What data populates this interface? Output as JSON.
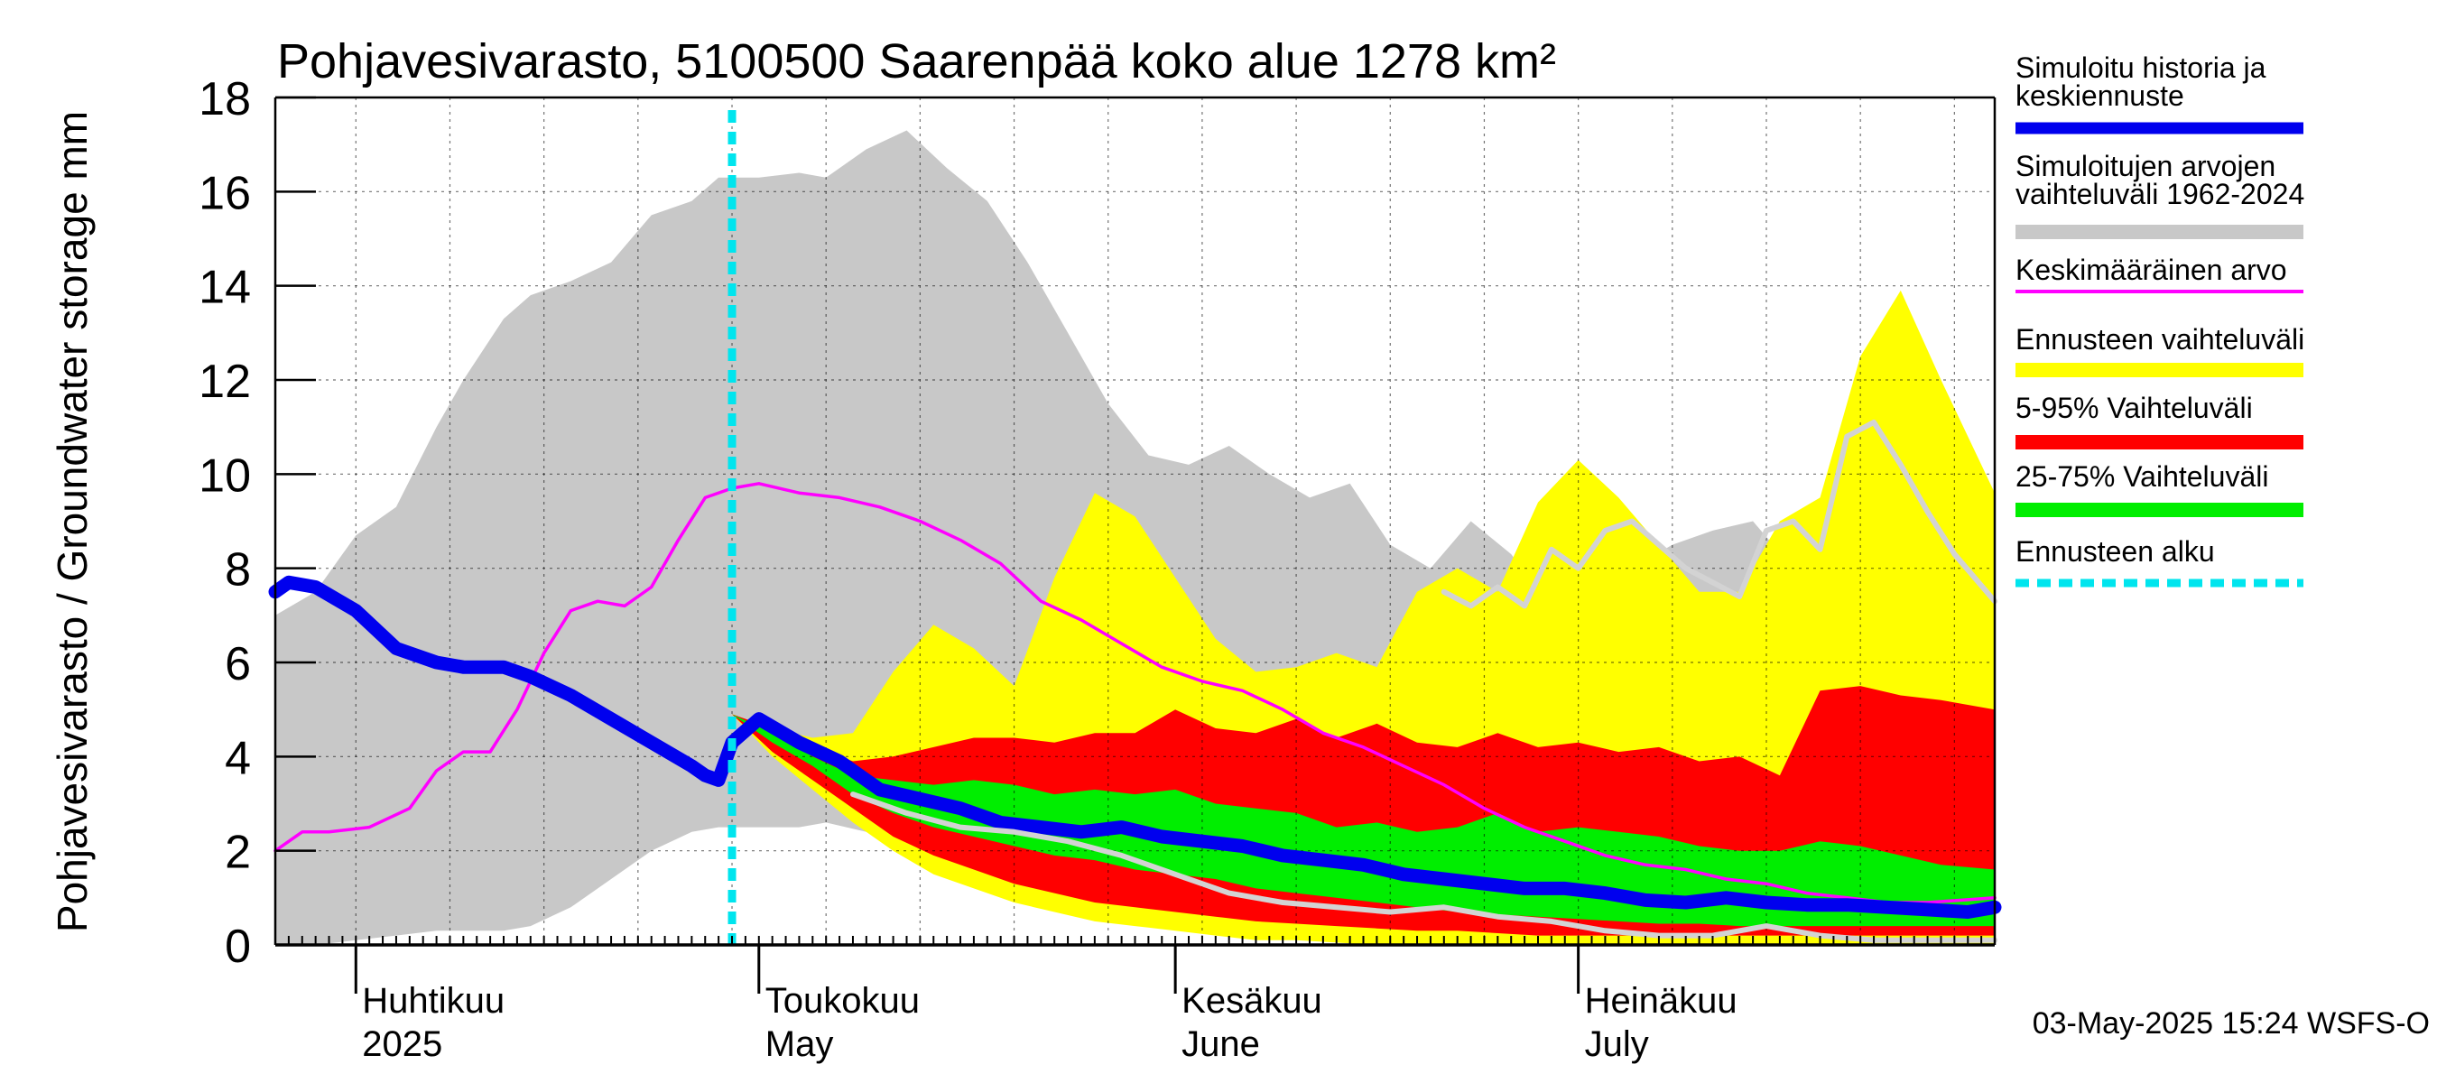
{
  "chart_data": {
    "type": "area",
    "title": "Pohjavesivarasto, 5100500 Saarenpää koko alue 1278 km²",
    "ylabel": "Pohjavesivarasto / Groundwater storage   mm",
    "ylim": [
      0,
      18
    ],
    "yticks": [
      "0",
      "2",
      "4",
      "6",
      "8",
      "10",
      "12",
      "14",
      "16",
      "18"
    ],
    "xlim": [
      "2025-03-26",
      "2025-08-01"
    ],
    "grid": true,
    "months": [
      {
        "date": "2025-04-01",
        "line1": "Huhtikuu",
        "line2": "2025"
      },
      {
        "date": "2025-05-01",
        "line1": "Toukokuu",
        "line2": "May"
      },
      {
        "date": "2025-06-01",
        "line1": "Kesäkuu",
        "line2": "June"
      },
      {
        "date": "2025-07-01",
        "line1": "Heinäkuu",
        "line2": "July"
      }
    ],
    "forecast_start": "2025-04-29",
    "timestamp": "03-May-2025 15:24 WSFS-O",
    "legend": [
      {
        "label": "Simuloitu historia ja keskiennuste",
        "color": "#0000ee",
        "style": "thick"
      },
      {
        "label": "Simuloitujen arvojen vaihteluväli 1962-2024",
        "color": "#c8c8c8",
        "style": "band"
      },
      {
        "label": "Keskimääräinen arvo",
        "color": "#ff00ff",
        "style": "thin"
      },
      {
        "label": "Ennusteen vaihteluväli",
        "color": "#ffff00",
        "style": "band"
      },
      {
        "label": "5-95% Vaihteluväli",
        "color": "#ff0000",
        "style": "band"
      },
      {
        "label": "25-75% Vaihteluväli",
        "color": "#00ee00",
        "style": "band"
      },
      {
        "label": "Ennusteen alku",
        "color": "#00e5ee",
        "style": "dashed"
      }
    ],
    "hist_range": {
      "name": "Simuloitujen arvojen vaihteluväli 1962-2024",
      "dates": [
        "2025-03-26",
        "2025-03-29",
        "2025-04-01",
        "2025-04-04",
        "2025-04-07",
        "2025-04-09",
        "2025-04-12",
        "2025-04-14",
        "2025-04-17",
        "2025-04-20",
        "2025-04-23",
        "2025-04-26",
        "2025-04-28",
        "2025-05-01",
        "2025-05-04",
        "2025-05-06",
        "2025-05-09",
        "2025-05-12",
        "2025-05-15",
        "2025-05-18",
        "2025-05-21",
        "2025-05-24",
        "2025-05-27",
        "2025-05-30",
        "2025-06-02",
        "2025-06-05",
        "2025-06-08",
        "2025-06-11",
        "2025-06-14",
        "2025-06-17",
        "2025-06-20",
        "2025-06-23",
        "2025-06-26",
        "2025-06-29",
        "2025-07-02",
        "2025-07-05",
        "2025-07-08",
        "2025-07-11",
        "2025-07-14",
        "2025-07-17",
        "2025-07-20",
        "2025-07-23",
        "2025-07-26",
        "2025-07-29",
        "2025-08-01"
      ],
      "upper": [
        7.0,
        7.5,
        8.7,
        9.3,
        11.0,
        12.0,
        13.3,
        13.8,
        14.1,
        14.5,
        15.5,
        15.8,
        16.3,
        16.3,
        16.4,
        16.3,
        16.9,
        17.3,
        16.5,
        15.8,
        14.5,
        13.0,
        11.5,
        10.4,
        10.2,
        10.6,
        10.0,
        9.5,
        9.8,
        8.5,
        8.0,
        9.0,
        8.3,
        7.2,
        7.5,
        8.0,
        8.5,
        8.8,
        9.0,
        8.0,
        7.5,
        7.5,
        7.3,
        7.0,
        7.0
      ],
      "lower": [
        0.0,
        0.0,
        0.1,
        0.2,
        0.3,
        0.3,
        0.3,
        0.4,
        0.8,
        1.4,
        2.0,
        2.4,
        2.5,
        2.5,
        2.5,
        2.6,
        2.4,
        2.3,
        2.2,
        2.0,
        1.8,
        1.6,
        1.3,
        1.2,
        1.1,
        1.0,
        0.9,
        0.8,
        0.7,
        0.7,
        0.6,
        0.5,
        0.4,
        0.3,
        0.2,
        0.2,
        0.1,
        0.0,
        0.0,
        0.0,
        0.0,
        0.0,
        0.0,
        0.0,
        0.0
      ]
    },
    "forecast_bands": [
      {
        "name": "Ennusteen vaihteluväli",
        "dates": [
          "2025-04-29",
          "2025-05-02",
          "2025-05-05",
          "2025-05-08",
          "2025-05-11",
          "2025-05-14",
          "2025-05-17",
          "2025-05-20",
          "2025-05-23",
          "2025-05-26",
          "2025-05-29",
          "2025-06-01",
          "2025-06-04",
          "2025-06-07",
          "2025-06-10",
          "2025-06-13",
          "2025-06-16",
          "2025-06-19",
          "2025-06-22",
          "2025-06-25",
          "2025-06-28",
          "2025-07-01",
          "2025-07-04",
          "2025-07-07",
          "2025-07-10",
          "2025-07-13",
          "2025-07-16",
          "2025-07-19",
          "2025-07-22",
          "2025-07-25",
          "2025-07-28",
          "2025-08-01"
        ],
        "upper": [
          4.9,
          4.6,
          4.4,
          4.5,
          5.8,
          6.8,
          6.3,
          5.5,
          7.8,
          9.6,
          9.1,
          7.8,
          6.5,
          5.8,
          5.9,
          6.2,
          5.9,
          7.5,
          8.0,
          7.5,
          9.4,
          10.3,
          9.5,
          8.5,
          7.5,
          7.5,
          9.0,
          9.5,
          12.5,
          13.9,
          12.0,
          9.6
        ],
        "lower": [
          4.9,
          4.0,
          3.3,
          2.6,
          2.0,
          1.5,
          1.2,
          0.9,
          0.7,
          0.5,
          0.4,
          0.3,
          0.2,
          0.1,
          0.1,
          0.05,
          0.0,
          0.0,
          0.0,
          0.0,
          0.0,
          0.0,
          0.0,
          0.0,
          0.0,
          0.0,
          0.0,
          0.0,
          0.0,
          0.0,
          0.0,
          0.0
        ]
      },
      {
        "name": "5-95% Vaihteluväli",
        "dates": [
          "2025-04-29",
          "2025-05-02",
          "2025-05-05",
          "2025-05-08",
          "2025-05-11",
          "2025-05-14",
          "2025-05-17",
          "2025-05-20",
          "2025-05-23",
          "2025-05-26",
          "2025-05-29",
          "2025-06-01",
          "2025-06-04",
          "2025-06-07",
          "2025-06-10",
          "2025-06-13",
          "2025-06-16",
          "2025-06-19",
          "2025-06-22",
          "2025-06-25",
          "2025-06-28",
          "2025-07-01",
          "2025-07-04",
          "2025-07-07",
          "2025-07-10",
          "2025-07-13",
          "2025-07-16",
          "2025-07-19",
          "2025-07-22",
          "2025-07-25",
          "2025-07-28",
          "2025-08-01"
        ],
        "upper": [
          4.9,
          4.6,
          4.2,
          3.9,
          4.0,
          4.2,
          4.4,
          4.4,
          4.3,
          4.5,
          4.5,
          5.0,
          4.6,
          4.5,
          4.8,
          4.4,
          4.7,
          4.3,
          4.2,
          4.5,
          4.2,
          4.3,
          4.1,
          4.2,
          3.9,
          4.0,
          3.6,
          5.4,
          5.5,
          5.3,
          5.2,
          5.0
        ],
        "lower": [
          4.9,
          4.1,
          3.5,
          2.9,
          2.3,
          1.9,
          1.6,
          1.3,
          1.1,
          0.9,
          0.8,
          0.7,
          0.6,
          0.5,
          0.45,
          0.4,
          0.35,
          0.3,
          0.3,
          0.25,
          0.2,
          0.2,
          0.2,
          0.2,
          0.2,
          0.2,
          0.2,
          0.2,
          0.2,
          0.2,
          0.2,
          0.2
        ]
      },
      {
        "name": "25-75% Vaihteluväli",
        "dates": [
          "2025-04-29",
          "2025-05-02",
          "2025-05-05",
          "2025-05-08",
          "2025-05-11",
          "2025-05-14",
          "2025-05-17",
          "2025-05-20",
          "2025-05-23",
          "2025-05-26",
          "2025-05-29",
          "2025-06-01",
          "2025-06-04",
          "2025-06-07",
          "2025-06-10",
          "2025-06-13",
          "2025-06-16",
          "2025-06-19",
          "2025-06-22",
          "2025-06-25",
          "2025-06-28",
          "2025-07-01",
          "2025-07-04",
          "2025-07-07",
          "2025-07-10",
          "2025-07-13",
          "2025-07-16",
          "2025-07-19",
          "2025-07-22",
          "2025-07-25",
          "2025-07-28",
          "2025-08-01"
        ],
        "upper": [
          4.9,
          4.5,
          4.0,
          3.6,
          3.5,
          3.4,
          3.5,
          3.4,
          3.2,
          3.3,
          3.2,
          3.3,
          3.0,
          2.9,
          2.8,
          2.5,
          2.6,
          2.4,
          2.5,
          2.8,
          2.4,
          2.5,
          2.4,
          2.3,
          2.1,
          2.0,
          2.0,
          2.2,
          2.1,
          1.9,
          1.7,
          1.6
        ],
        "lower": [
          4.9,
          4.3,
          3.8,
          3.2,
          2.8,
          2.5,
          2.3,
          2.1,
          1.9,
          1.8,
          1.6,
          1.5,
          1.4,
          1.2,
          1.1,
          1.0,
          0.9,
          0.8,
          0.7,
          0.65,
          0.6,
          0.55,
          0.5,
          0.45,
          0.45,
          0.4,
          0.4,
          0.4,
          0.4,
          0.4,
          0.4,
          0.4
        ]
      }
    ],
    "series": [
      {
        "name": "Keskimääräinen arvo",
        "color": "#ff00ff",
        "dates": [
          "2025-03-26",
          "2025-03-28",
          "2025-03-30",
          "2025-04-02",
          "2025-04-05",
          "2025-04-07",
          "2025-04-09",
          "2025-04-11",
          "2025-04-13",
          "2025-04-15",
          "2025-04-17",
          "2025-04-19",
          "2025-04-21",
          "2025-04-23",
          "2025-04-25",
          "2025-04-27",
          "2025-04-29",
          "2025-05-01",
          "2025-05-04",
          "2025-05-07",
          "2025-05-10",
          "2025-05-13",
          "2025-05-16",
          "2025-05-19",
          "2025-05-22",
          "2025-05-25",
          "2025-05-28",
          "2025-05-31",
          "2025-06-03",
          "2025-06-06",
          "2025-06-09",
          "2025-06-12",
          "2025-06-15",
          "2025-06-18",
          "2025-06-21",
          "2025-06-24",
          "2025-06-27",
          "2025-06-30",
          "2025-07-03",
          "2025-07-06",
          "2025-07-09",
          "2025-07-12",
          "2025-07-15",
          "2025-07-18",
          "2025-07-21",
          "2025-07-24",
          "2025-07-27",
          "2025-08-01"
        ],
        "values": [
          2.0,
          2.4,
          2.4,
          2.5,
          2.9,
          3.7,
          4.1,
          4.1,
          5.0,
          6.2,
          7.1,
          7.3,
          7.2,
          7.6,
          8.6,
          9.5,
          9.7,
          9.8,
          9.6,
          9.5,
          9.3,
          9.0,
          8.6,
          8.1,
          7.3,
          6.9,
          6.4,
          5.9,
          5.6,
          5.4,
          5.0,
          4.5,
          4.2,
          3.8,
          3.4,
          2.9,
          2.5,
          2.2,
          1.9,
          1.7,
          1.6,
          1.4,
          1.3,
          1.1,
          1.0,
          0.9,
          0.9,
          1.0
        ]
      },
      {
        "name": "Simuloitu historia ja keskiennuste",
        "color": "#0000ee",
        "dates": [
          "2025-03-26",
          "2025-03-27",
          "2025-03-29",
          "2025-04-01",
          "2025-04-04",
          "2025-04-07",
          "2025-04-09",
          "2025-04-12",
          "2025-04-14",
          "2025-04-17",
          "2025-04-20",
          "2025-04-23",
          "2025-04-26",
          "2025-04-27",
          "2025-04-28",
          "2025-04-29",
          "2025-05-01",
          "2025-05-04",
          "2025-05-07",
          "2025-05-10",
          "2025-05-13",
          "2025-05-16",
          "2025-05-19",
          "2025-05-22",
          "2025-05-25",
          "2025-05-28",
          "2025-05-31",
          "2025-06-03",
          "2025-06-06",
          "2025-06-09",
          "2025-06-12",
          "2025-06-15",
          "2025-06-18",
          "2025-06-21",
          "2025-06-24",
          "2025-06-27",
          "2025-06-30",
          "2025-07-03",
          "2025-07-06",
          "2025-07-09",
          "2025-07-12",
          "2025-07-15",
          "2025-07-18",
          "2025-07-21",
          "2025-07-24",
          "2025-07-27",
          "2025-07-30",
          "2025-08-01"
        ],
        "values": [
          7.5,
          7.7,
          7.6,
          7.1,
          6.3,
          6.0,
          5.9,
          5.9,
          5.7,
          5.3,
          4.8,
          4.3,
          3.8,
          3.6,
          3.5,
          4.3,
          4.8,
          4.3,
          3.9,
          3.3,
          3.1,
          2.9,
          2.6,
          2.5,
          2.4,
          2.5,
          2.3,
          2.2,
          2.1,
          1.9,
          1.8,
          1.7,
          1.5,
          1.4,
          1.3,
          1.2,
          1.2,
          1.1,
          0.95,
          0.9,
          1.0,
          0.9,
          0.85,
          0.85,
          0.8,
          0.75,
          0.7,
          0.8
        ]
      },
      {
        "name": "forecast-median-grey",
        "color": "#d3d3d3",
        "dates": [
          "2025-05-08",
          "2025-05-12",
          "2025-05-16",
          "2025-05-20",
          "2025-05-24",
          "2025-05-28",
          "2025-06-01",
          "2025-06-05",
          "2025-06-09",
          "2025-06-13",
          "2025-06-17",
          "2025-06-21",
          "2025-06-25",
          "2025-06-29",
          "2025-07-03",
          "2025-07-07",
          "2025-07-11",
          "2025-07-15",
          "2025-07-19",
          "2025-07-23",
          "2025-07-27",
          "2025-08-01"
        ],
        "values": [
          3.2,
          2.8,
          2.5,
          2.4,
          2.2,
          1.9,
          1.5,
          1.1,
          0.9,
          0.8,
          0.7,
          0.8,
          0.6,
          0.5,
          0.3,
          0.2,
          0.2,
          0.4,
          0.2,
          0.1,
          0.1,
          0.1
        ]
      },
      {
        "name": "forecast-upper-grey",
        "color": "#d3d3d3",
        "dates": [
          "2025-06-21",
          "2025-06-23",
          "2025-06-25",
          "2025-06-27",
          "2025-06-29",
          "2025-07-01",
          "2025-07-03",
          "2025-07-05",
          "2025-07-07",
          "2025-07-09",
          "2025-07-11",
          "2025-07-13",
          "2025-07-15",
          "2025-07-17",
          "2025-07-19",
          "2025-07-21",
          "2025-07-23",
          "2025-07-25",
          "2025-07-27",
          "2025-07-29",
          "2025-08-01"
        ],
        "values": [
          7.5,
          7.2,
          7.6,
          7.2,
          8.4,
          8.0,
          8.8,
          9.0,
          8.5,
          8.0,
          7.7,
          7.4,
          8.8,
          9.0,
          8.4,
          10.8,
          11.1,
          10.2,
          9.2,
          8.3,
          7.3
        ]
      }
    ]
  }
}
